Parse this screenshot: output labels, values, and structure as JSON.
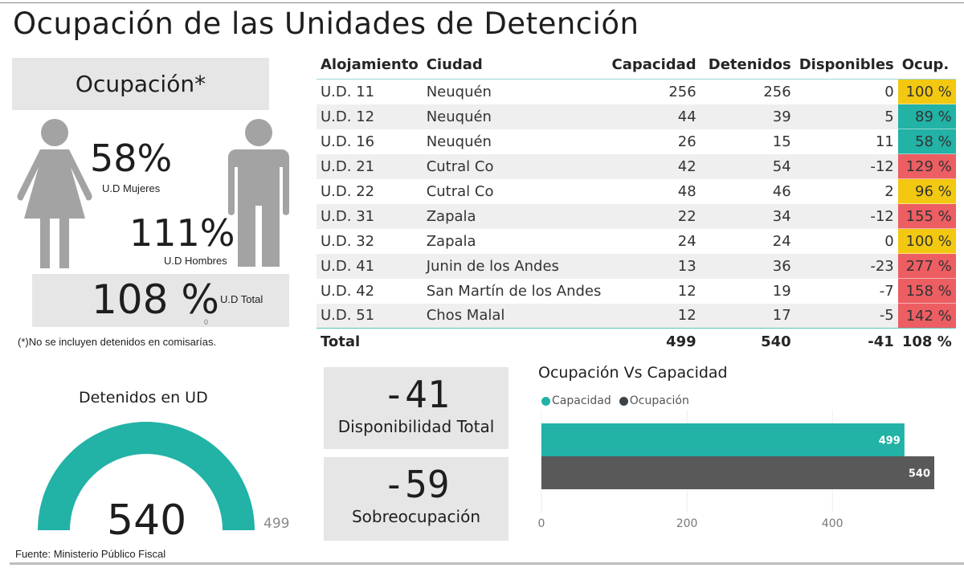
{
  "page": {
    "title": "Ocupación de las Unidades de Detención",
    "source": "Fuente: Ministerio Público Fiscal"
  },
  "occupancy": {
    "header": "Ocupación*",
    "women": {
      "value": "58%",
      "label": "U.D Mujeres"
    },
    "men": {
      "value": "111%",
      "label": "U.D Hombres"
    },
    "total": {
      "value": "108 %",
      "label": "U.D Total",
      "sub": "0"
    },
    "footnote": "(*)No se incluyen detenidos en comisarías."
  },
  "table": {
    "columns": [
      "Alojamiento",
      "Ciudad",
      "Capacidad",
      "Detenidos",
      "Disponibles",
      "Ocup."
    ],
    "rows": [
      {
        "aloj": "U.D. 11",
        "ciudad": "Neuquén",
        "cap": "256",
        "det": "256",
        "disp": "0",
        "ocup": "100 %",
        "color": "#f2c811"
      },
      {
        "aloj": "U.D. 12",
        "ciudad": "Neuquén",
        "cap": "44",
        "det": "39",
        "disp": "5",
        "ocup": "89 %",
        "color": "#22b2a6"
      },
      {
        "aloj": "U.D. 16",
        "ciudad": "Neuquén",
        "cap": "26",
        "det": "15",
        "disp": "11",
        "ocup": "58 %",
        "color": "#22b2a6"
      },
      {
        "aloj": "U.D. 21",
        "ciudad": "Cutral Co",
        "cap": "42",
        "det": "54",
        "disp": "-12",
        "ocup": "129 %",
        "color": "#ec5e62"
      },
      {
        "aloj": "U.D. 22",
        "ciudad": "Cutral Co",
        "cap": "48",
        "det": "46",
        "disp": "2",
        "ocup": "96 %",
        "color": "#f2c811"
      },
      {
        "aloj": "U.D. 31",
        "ciudad": "Zapala",
        "cap": "22",
        "det": "34",
        "disp": "-12",
        "ocup": "155 %",
        "color": "#ec5e62"
      },
      {
        "aloj": "U.D. 32",
        "ciudad": "Zapala",
        "cap": "24",
        "det": "24",
        "disp": "0",
        "ocup": "100 %",
        "color": "#f2c811"
      },
      {
        "aloj": "U.D. 41",
        "ciudad": "Junin de los Andes",
        "cap": "13",
        "det": "36",
        "disp": "-23",
        "ocup": "277 %",
        "color": "#ec5e62"
      },
      {
        "aloj": "U.D. 42",
        "ciudad": "San Martín de los Andes",
        "cap": "12",
        "det": "19",
        "disp": "-7",
        "ocup": "158 %",
        "color": "#ec5e62"
      },
      {
        "aloj": "U.D. 51",
        "ciudad": "Chos Malal",
        "cap": "12",
        "det": "17",
        "disp": "-5",
        "ocup": "142 %",
        "color": "#ec5e62"
      }
    ],
    "total": {
      "label": "Total",
      "cap": "499",
      "det": "540",
      "disp": "-41",
      "ocup": "108 %"
    }
  },
  "gauge": {
    "title": "Detenidos en UD",
    "value": 540,
    "value_label": "540",
    "max": 499,
    "max_label": "499",
    "color": "#22b2a6"
  },
  "kpis": [
    {
      "value": "-41",
      "label": "Disponibilidad Total"
    },
    {
      "value": "-59",
      "label": "Sobreocupación"
    }
  ],
  "chart_data": {
    "type": "bar",
    "orientation": "horizontal",
    "title": "Ocupación Vs Capacidad",
    "categories": [
      ""
    ],
    "series": [
      {
        "name": "Capacidad",
        "values": [
          499
        ],
        "color": "#22b2a6"
      },
      {
        "name": "Ocupación",
        "values": [
          540
        ],
        "color": "#595959"
      }
    ],
    "legend": {
      "position": "top-left",
      "entries": [
        "Capacidad",
        "Ocupación"
      ],
      "colors": [
        "#22b2a6",
        "#3a4448"
      ]
    },
    "xticks": [
      0,
      200,
      400
    ],
    "xlim": [
      0,
      540
    ],
    "grid": true,
    "data_labels": [
      "499",
      "540"
    ]
  }
}
